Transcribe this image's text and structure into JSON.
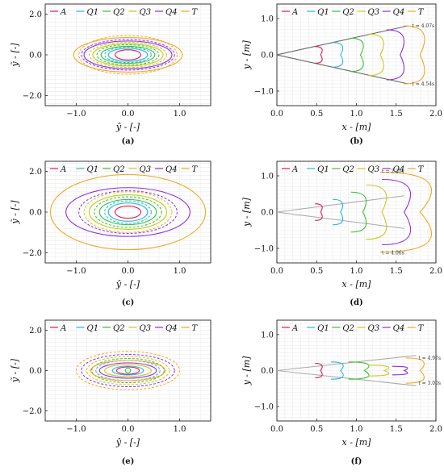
{
  "figure": {
    "legend_labels": [
      "A",
      "Q1",
      "Q2",
      "Q3",
      "Q4",
      "T"
    ],
    "colors": {
      "A": "#e6194b",
      "Q1": "#22b8e6",
      "Q2": "#36c236",
      "Q3": "#c8c81e",
      "Q4": "#8e2ee0",
      "T": "#f5a623"
    },
    "left_panel": {
      "xlabel": "ŷ - [-]",
      "ylabel": "ỹ - [-]",
      "xticks": [
        "−1.0",
        "0.0",
        "1.0"
      ],
      "yticks": [
        "2.0",
        "0.0",
        "−2.0"
      ]
    },
    "right_panel": {
      "xlabel": "x - [m]",
      "ylabel": "y - [m]",
      "xticks": [
        "0.0",
        "0.5",
        "1.0",
        "1.5",
        "2.0"
      ],
      "yticks": [
        "1.0",
        "0.0",
        "−1.0"
      ]
    }
  },
  "chart_data": [
    {
      "panel": "a",
      "type": "line",
      "caption": "(a)",
      "xlim": [
        -1.6,
        1.6
      ],
      "ylim": [
        -2.5,
        2.5
      ],
      "grid": true,
      "legend": "top",
      "series": [
        {
          "name": "A",
          "solid_rx": 0.25,
          "solid_ry": 0.25
        },
        {
          "name": "Q1",
          "solid_rx": 0.38,
          "solid_ry": 0.32,
          "dashed_rx": 0.45,
          "dashed_ry": 0.38
        },
        {
          "name": "Q2",
          "solid_rx": 0.52,
          "solid_ry": 0.42,
          "dashed_rx": 0.6,
          "dashed_ry": 0.5
        },
        {
          "name": "Q3",
          "solid_rx": 0.68,
          "solid_ry": 0.55,
          "dashed_rx": 0.75,
          "dashed_ry": 0.62
        },
        {
          "name": "Q4",
          "solid_rx": 0.85,
          "solid_ry": 0.68,
          "dashed_rx": 0.9,
          "dashed_ry": 0.75
        },
        {
          "name": "T",
          "solid_rx": 1.05,
          "solid_ry": 0.85,
          "dashed_rx": 0.95,
          "dashed_ry": 0.95
        }
      ]
    },
    {
      "panel": "b",
      "type": "line",
      "caption": "(b)",
      "xlim": [
        0,
        2
      ],
      "ylim": [
        -1.4,
        1.4
      ],
      "grid": true,
      "legend": "top",
      "boundary_rays": [
        {
          "end": [
            1.65,
            0.8
          ],
          "color": "#666"
        },
        {
          "end": [
            1.65,
            -0.8
          ],
          "color": "#666"
        }
      ],
      "arcs": [
        {
          "name": "A",
          "x_tip": 0.55,
          "x_start": 0.48,
          "half_height": 0.23
        },
        {
          "name": "Q1",
          "x_tip": 0.8,
          "x_start": 0.7,
          "half_height": 0.34
        },
        {
          "name": "Q2",
          "x_tip": 1.05,
          "x_start": 0.92,
          "half_height": 0.46
        },
        {
          "name": "Q3",
          "x_tip": 1.3,
          "x_start": 1.15,
          "half_height": 0.57
        },
        {
          "name": "Q4",
          "x_tip": 1.55,
          "x_start": 1.38,
          "half_height": 0.69
        },
        {
          "name": "T",
          "x_tip": 1.8,
          "x_start": 1.6,
          "half_height": 0.8
        }
      ],
      "annotations": [
        {
          "text": "t = 4.07s",
          "x": 1.7,
          "y": 0.8
        },
        {
          "text": "t = 4.54s",
          "x": 1.7,
          "y": -0.8
        }
      ]
    },
    {
      "panel": "c",
      "type": "line",
      "caption": "(c)",
      "xlim": [
        -1.6,
        1.6
      ],
      "ylim": [
        -2.5,
        2.5
      ],
      "grid": true,
      "legend": "top",
      "series": [
        {
          "name": "A",
          "solid_rx": 0.25,
          "solid_ry": 0.3
        },
        {
          "name": "Q1",
          "solid_rx": 0.38,
          "solid_ry": 0.45,
          "dashed_rx": 0.45,
          "dashed_ry": 0.55
        },
        {
          "name": "Q2",
          "solid_rx": 0.55,
          "solid_ry": 0.62,
          "dashed_rx": 0.65,
          "dashed_ry": 0.75
        },
        {
          "name": "Q3",
          "solid_rx": 0.75,
          "solid_ry": 0.85,
          "dashed_rx": 0.85,
          "dashed_ry": 1.0
        },
        {
          "name": "Q4",
          "solid_rx": 1.2,
          "solid_ry": 1.2,
          "dashed_rx": 0.95,
          "dashed_ry": 1.05
        },
        {
          "name": "T",
          "solid_rx": 1.5,
          "solid_ry": 1.85
        }
      ]
    },
    {
      "panel": "d",
      "type": "line",
      "caption": "(d)",
      "xlim": [
        0,
        2
      ],
      "ylim": [
        -1.4,
        1.4
      ],
      "grid": true,
      "legend": "top",
      "boundary_rays": [
        {
          "end": [
            1.6,
            0.45
          ],
          "color": "#aaa"
        },
        {
          "end": [
            1.6,
            -0.45
          ],
          "color": "#aaa"
        }
      ],
      "arcs": [
        {
          "name": "A",
          "x_tip": 0.55,
          "x_start": 0.48,
          "half_height": 0.23
        },
        {
          "name": "Q1",
          "x_tip": 0.8,
          "x_start": 0.7,
          "half_height": 0.35
        },
        {
          "name": "Q2",
          "x_tip": 1.08,
          "x_start": 0.93,
          "half_height": 0.55
        },
        {
          "name": "Q3",
          "x_tip": 1.32,
          "x_start": 1.12,
          "half_height": 0.75
        },
        {
          "name": "Q4",
          "x_tip": 1.6,
          "x_start": 1.32,
          "half_height": 0.9
        },
        {
          "name": "T",
          "x_tip": 1.8,
          "x_start": 1.3,
          "half_height": 1.1
        }
      ],
      "annotations": [
        {
          "text": "t = 2.31s",
          "x": 1.32,
          "y": 1.12
        },
        {
          "text": "t = 4.06s",
          "x": 1.32,
          "y": -1.12
        }
      ]
    },
    {
      "panel": "e",
      "type": "line",
      "caption": "(e)",
      "xlim": [
        -1.6,
        1.6
      ],
      "ylim": [
        -2.5,
        2.5
      ],
      "grid": true,
      "legend": "top",
      "series": [
        {
          "name": "A",
          "solid_rx": 0.22,
          "solid_ry": 0.18
        },
        {
          "name": "Q1",
          "solid_rx": 0.3,
          "solid_ry": 0.22,
          "dashed_rx": 0.62,
          "dashed_ry": 0.5
        },
        {
          "name": "Q2",
          "solid_rx": 0.05,
          "solid_ry": 0.12,
          "dashed_rx": 0.7,
          "dashed_ry": 0.6
        },
        {
          "name": "Q3",
          "solid_rx": 0.45,
          "solid_ry": 0.3,
          "dashed_rx": 0.8,
          "dashed_ry": 0.7
        },
        {
          "name": "Q4",
          "solid_rx": 0.55,
          "solid_ry": 0.38,
          "dashed_rx": 0.9,
          "dashed_ry": 0.8
        },
        {
          "name": "T",
          "solid_rx": 0.72,
          "solid_ry": 0.5,
          "dashed_rx": 1.0,
          "dashed_ry": 0.95
        }
      ]
    },
    {
      "panel": "f",
      "type": "line",
      "caption": "(f)",
      "xlim": [
        0,
        2
      ],
      "ylim": [
        -1.4,
        1.4
      ],
      "grid": true,
      "legend": "top",
      "boundary_rays": [
        {
          "end": [
            1.75,
            0.42
          ],
          "color": "#aaa"
        },
        {
          "end": [
            1.75,
            -0.42
          ],
          "color": "#aaa"
        }
      ],
      "arcs": [
        {
          "name": "A",
          "x_tip": 0.55,
          "x_start": 0.48,
          "half_height": 0.2
        },
        {
          "name": "Q1",
          "x_tip": 0.8,
          "x_start": 0.68,
          "half_height": 0.24
        },
        {
          "name": "Q2",
          "x_tip": 1.1,
          "x_start": 0.9,
          "half_height": 0.24
        },
        {
          "name": "Q3",
          "x_tip": 1.35,
          "x_start": 1.15,
          "half_height": 0.15
        },
        {
          "name": "Q4",
          "x_tip": 1.6,
          "x_start": 1.45,
          "half_height": 0.12
        },
        {
          "name": "T",
          "x_tip": 1.8,
          "x_start": 1.62,
          "half_height": 0.35
        }
      ],
      "annotations": [
        {
          "text": "t = 4.97s",
          "x": 1.78,
          "y": 0.35
        },
        {
          "text": "t = 3.00s",
          "x": 1.78,
          "y": -0.35
        }
      ]
    }
  ]
}
